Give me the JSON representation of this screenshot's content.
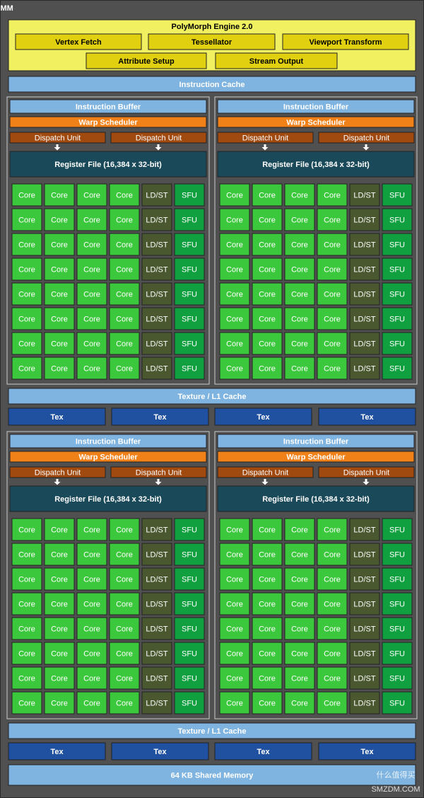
{
  "title": "SMM",
  "polymorph": {
    "title": "PolyMorph Engine 2.0",
    "units": [
      "Vertex Fetch",
      "Tessellator",
      "Viewport Transform",
      "Attribute Setup",
      "Stream Output"
    ]
  },
  "instruction_cache": "Instruction Cache",
  "blocks": [
    {
      "partitions": [
        {
          "instruction_buffer": "Instruction Buffer",
          "warp_scheduler": "Warp Scheduler",
          "dispatch_units": [
            "Dispatch Unit",
            "Dispatch Unit"
          ],
          "register_file": "Register File (16,384 x 32-bit)",
          "rows": [
            [
              "Core",
              "Core",
              "Core",
              "Core",
              "LD/ST",
              "SFU"
            ],
            [
              "Core",
              "Core",
              "Core",
              "Core",
              "LD/ST",
              "SFU"
            ],
            [
              "Core",
              "Core",
              "Core",
              "Core",
              "LD/ST",
              "SFU"
            ],
            [
              "Core",
              "Core",
              "Core",
              "Core",
              "LD/ST",
              "SFU"
            ],
            [
              "Core",
              "Core",
              "Core",
              "Core",
              "LD/ST",
              "SFU"
            ],
            [
              "Core",
              "Core",
              "Core",
              "Core",
              "LD/ST",
              "SFU"
            ],
            [
              "Core",
              "Core",
              "Core",
              "Core",
              "LD/ST",
              "SFU"
            ],
            [
              "Core",
              "Core",
              "Core",
              "Core",
              "LD/ST",
              "SFU"
            ]
          ]
        },
        {
          "instruction_buffer": "Instruction Buffer",
          "warp_scheduler": "Warp Scheduler",
          "dispatch_units": [
            "Dispatch Unit",
            "Dispatch Unit"
          ],
          "register_file": "Register File (16,384 x 32-bit)",
          "rows": [
            [
              "Core",
              "Core",
              "Core",
              "Core",
              "LD/ST",
              "SFU"
            ],
            [
              "Core",
              "Core",
              "Core",
              "Core",
              "LD/ST",
              "SFU"
            ],
            [
              "Core",
              "Core",
              "Core",
              "Core",
              "LD/ST",
              "SFU"
            ],
            [
              "Core",
              "Core",
              "Core",
              "Core",
              "LD/ST",
              "SFU"
            ],
            [
              "Core",
              "Core",
              "Core",
              "Core",
              "LD/ST",
              "SFU"
            ],
            [
              "Core",
              "Core",
              "Core",
              "Core",
              "LD/ST",
              "SFU"
            ],
            [
              "Core",
              "Core",
              "Core",
              "Core",
              "LD/ST",
              "SFU"
            ],
            [
              "Core",
              "Core",
              "Core",
              "Core",
              "LD/ST",
              "SFU"
            ]
          ]
        }
      ],
      "texture_cache": "Texture / L1 Cache",
      "tex": [
        "Tex",
        "Tex",
        "Tex",
        "Tex"
      ]
    },
    {
      "partitions": [
        {
          "instruction_buffer": "Instruction Buffer",
          "warp_scheduler": "Warp Scheduler",
          "dispatch_units": [
            "Dispatch Unit",
            "Dispatch Unit"
          ],
          "register_file": "Register File (16,384 x 32-bit)",
          "rows": [
            [
              "Core",
              "Core",
              "Core",
              "Core",
              "LD/ST",
              "SFU"
            ],
            [
              "Core",
              "Core",
              "Core",
              "Core",
              "LD/ST",
              "SFU"
            ],
            [
              "Core",
              "Core",
              "Core",
              "Core",
              "LD/ST",
              "SFU"
            ],
            [
              "Core",
              "Core",
              "Core",
              "Core",
              "LD/ST",
              "SFU"
            ],
            [
              "Core",
              "Core",
              "Core",
              "Core",
              "LD/ST",
              "SFU"
            ],
            [
              "Core",
              "Core",
              "Core",
              "Core",
              "LD/ST",
              "SFU"
            ],
            [
              "Core",
              "Core",
              "Core",
              "Core",
              "LD/ST",
              "SFU"
            ],
            [
              "Core",
              "Core",
              "Core",
              "Core",
              "LD/ST",
              "SFU"
            ]
          ]
        },
        {
          "instruction_buffer": "Instruction Buffer",
          "warp_scheduler": "Warp Scheduler",
          "dispatch_units": [
            "Dispatch Unit",
            "Dispatch Unit"
          ],
          "register_file": "Register File (16,384 x 32-bit)",
          "rows": [
            [
              "Core",
              "Core",
              "Core",
              "Core",
              "LD/ST",
              "SFU"
            ],
            [
              "Core",
              "Core",
              "Core",
              "Core",
              "LD/ST",
              "SFU"
            ],
            [
              "Core",
              "Core",
              "Core",
              "Core",
              "LD/ST",
              "SFU"
            ],
            [
              "Core",
              "Core",
              "Core",
              "Core",
              "LD/ST",
              "SFU"
            ],
            [
              "Core",
              "Core",
              "Core",
              "Core",
              "LD/ST",
              "SFU"
            ],
            [
              "Core",
              "Core",
              "Core",
              "Core",
              "LD/ST",
              "SFU"
            ],
            [
              "Core",
              "Core",
              "Core",
              "Core",
              "LD/ST",
              "SFU"
            ],
            [
              "Core",
              "Core",
              "Core",
              "Core",
              "LD/ST",
              "SFU"
            ]
          ]
        }
      ],
      "texture_cache": "Texture / L1 Cache",
      "tex": [
        "Tex",
        "Tex",
        "Tex",
        "Tex"
      ]
    }
  ],
  "shared_memory": "64 KB Shared Memory",
  "watermark": [
    "什么值得买",
    "SMZDM.COM"
  ]
}
